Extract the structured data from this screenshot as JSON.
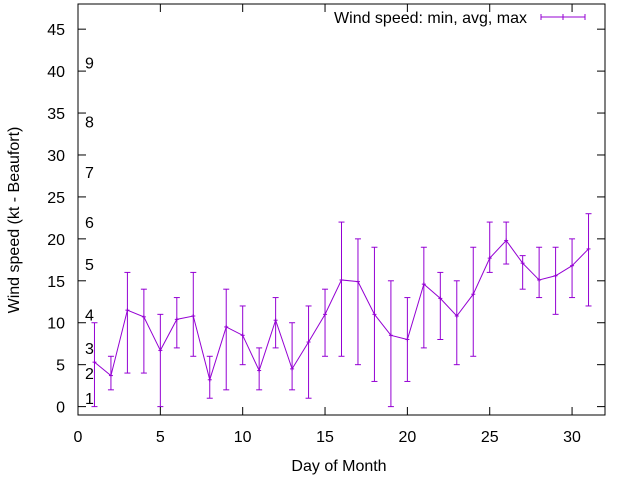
{
  "chart_data": {
    "type": "line",
    "xlabel": "Day of Month",
    "ylabel": "Wind speed (kt - Beaufort)",
    "xlim": [
      0,
      32
    ],
    "ylim": [
      -1,
      48
    ],
    "x_ticks": [
      "0",
      "5",
      "10",
      "15",
      "20",
      "25",
      "30"
    ],
    "y_ticks": [
      "0",
      "5",
      "10",
      "15",
      "20",
      "25",
      "30",
      "35",
      "40",
      "45"
    ],
    "grid": false,
    "legend_position": "top-right",
    "colors": {
      "series": "#9400d3",
      "axis": "#000000"
    },
    "series": [
      {
        "name": "Wind speed: min, avg, max",
        "x": [
          1,
          2,
          3,
          4,
          5,
          6,
          7,
          8,
          9,
          10,
          11,
          12,
          13,
          14,
          15,
          16,
          17,
          18,
          19,
          20,
          21,
          22,
          23,
          24,
          25,
          26,
          27,
          28,
          29,
          30,
          31
        ],
        "avg": [
          5.3,
          3.7,
          11.5,
          10.7,
          6.7,
          10.4,
          10.8,
          3.2,
          9.5,
          8.5,
          4.3,
          10.3,
          4.5,
          7.7,
          11,
          15.1,
          14.9,
          11,
          8.5,
          8,
          14.6,
          12.9,
          10.8,
          13.4,
          17.7,
          19.8,
          17.1,
          15.1,
          15.6,
          16.8,
          18.8
        ],
        "min": [
          0,
          2,
          4,
          4,
          0,
          7,
          6,
          1,
          2,
          5,
          2,
          7,
          2,
          1,
          6,
          6,
          5,
          3,
          0,
          3,
          7,
          8,
          5,
          6,
          16,
          17,
          14,
          13,
          11,
          13,
          12
        ],
        "max": [
          10,
          6,
          16,
          14,
          11,
          13,
          16,
          6,
          14,
          12,
          7,
          13,
          10,
          12,
          14,
          22,
          20,
          19,
          15,
          13,
          19,
          16,
          15,
          19,
          22,
          22,
          18,
          19,
          19,
          20,
          23
        ]
      }
    ],
    "beaufort_scale": [
      {
        "label": "1",
        "value": 1
      },
      {
        "label": "2",
        "value": 4
      },
      {
        "label": "3",
        "value": 7
      },
      {
        "label": "4",
        "value": 11
      },
      {
        "label": "5",
        "value": 17
      },
      {
        "label": "6",
        "value": 22
      },
      {
        "label": "7",
        "value": 28
      },
      {
        "label": "8",
        "value": 34
      },
      {
        "label": "9",
        "value": 41
      }
    ]
  }
}
